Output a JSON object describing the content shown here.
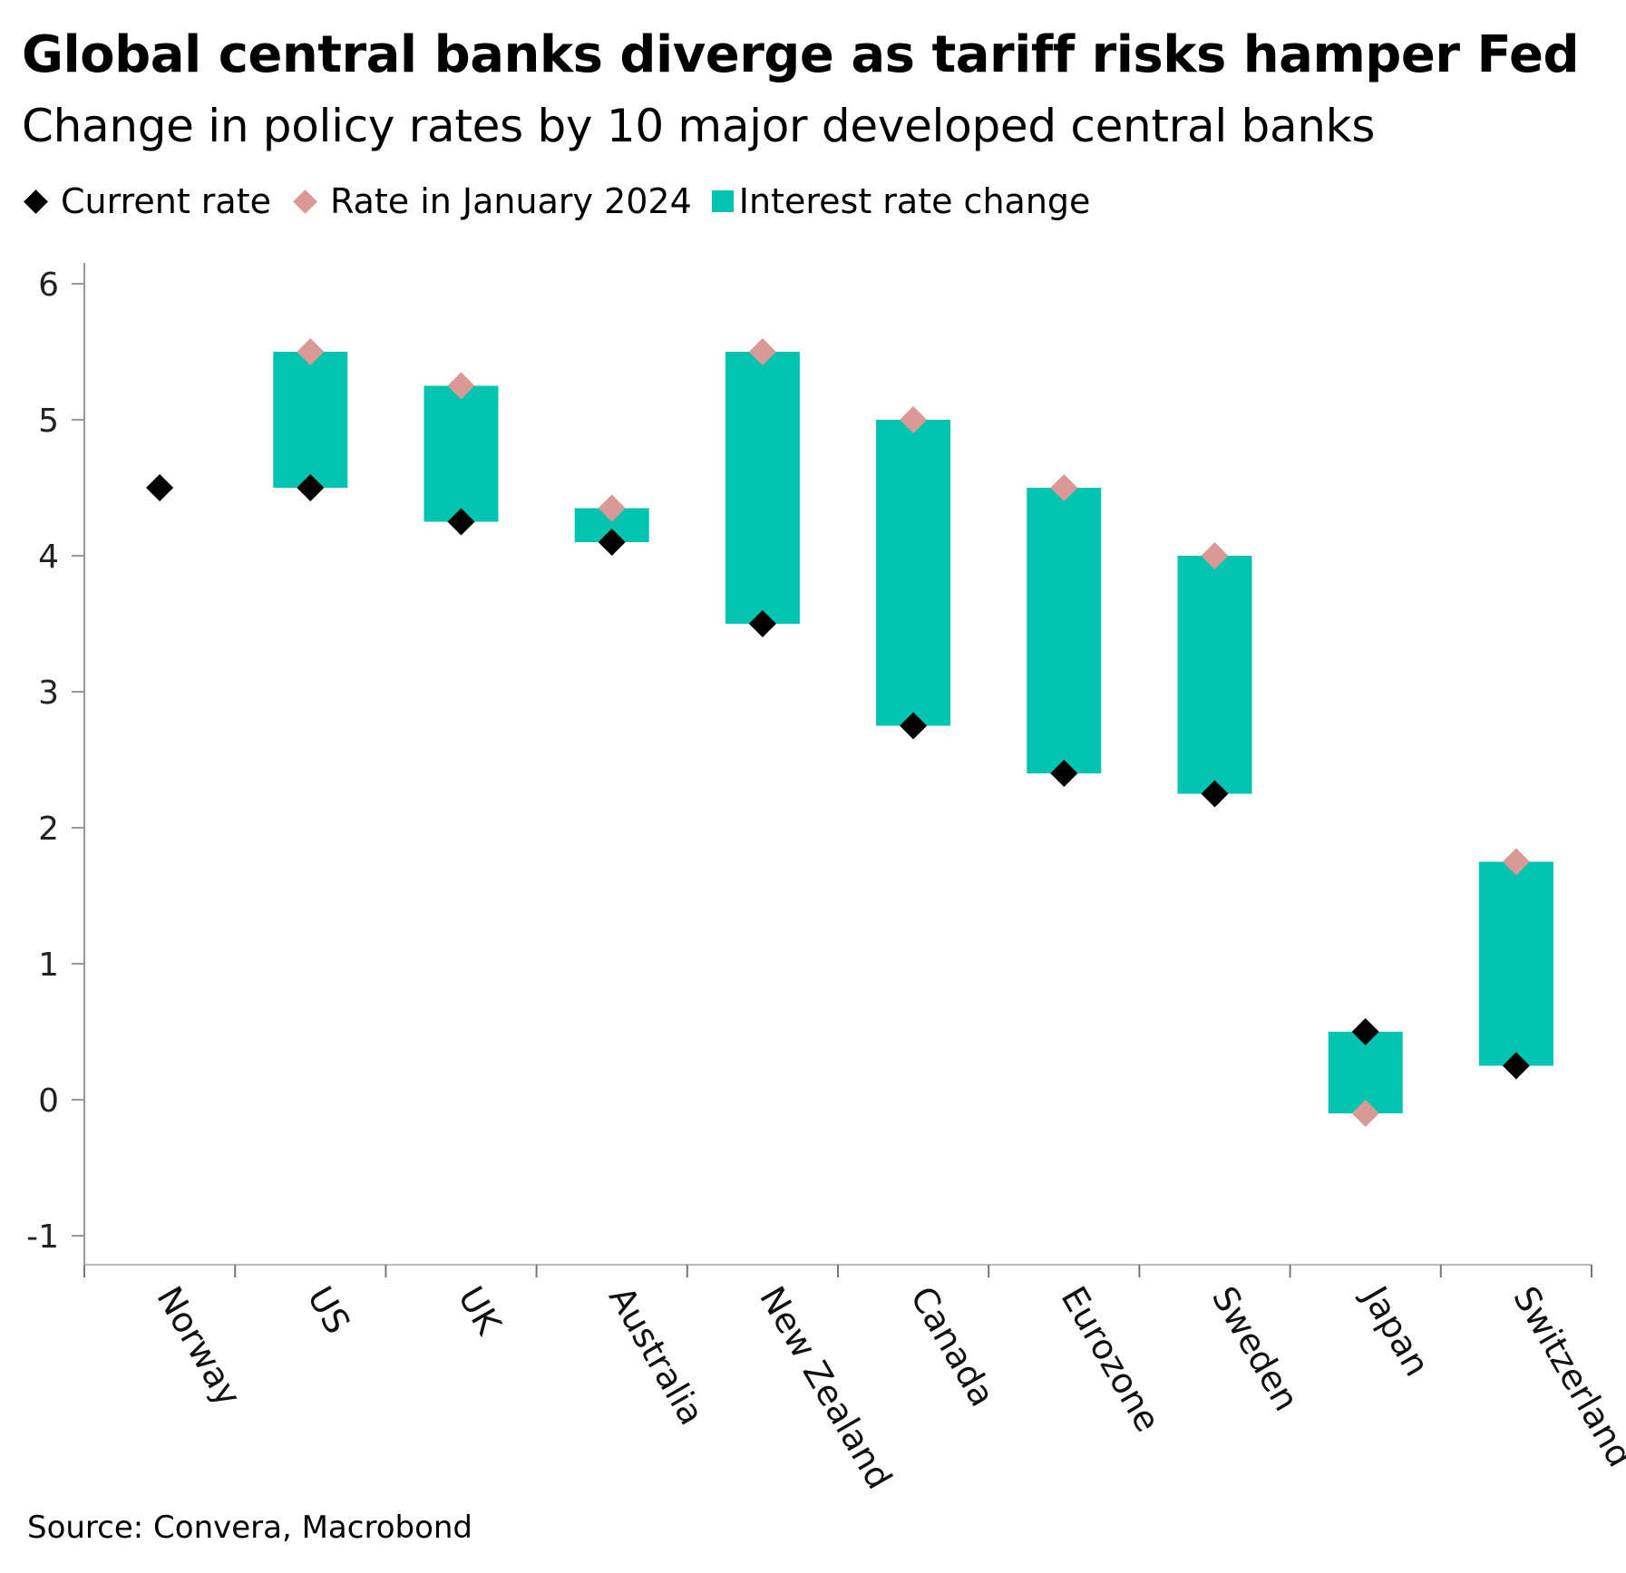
{
  "chart_data": {
    "type": "floating-bar-with-markers",
    "title": "Global central banks diverge as tariff risks hamper Fed",
    "subtitle": "Change in policy rates by 10 major developed central banks",
    "legend": [
      {
        "key": "current",
        "label": "Current rate",
        "color": "#000000",
        "marker": "diamond"
      },
      {
        "key": "jan2024",
        "label": "Rate in January 2024",
        "color": "#d99a96",
        "marker": "diamond"
      },
      {
        "key": "change",
        "label": "Interest rate change",
        "color": "#00c4b0",
        "marker": "square"
      }
    ],
    "legend_position": "top-left",
    "categories": [
      "Norway",
      "US",
      "UK",
      "Australia",
      "New Zealand",
      "Canada",
      "Eurozone",
      "Sweden",
      "Japan",
      "Switzerland"
    ],
    "series": [
      {
        "name": "Current rate",
        "values": [
          4.5,
          4.5,
          4.25,
          4.1,
          3.5,
          2.75,
          2.4,
          2.25,
          0.5,
          0.25
        ]
      },
      {
        "name": "Rate in January 2024",
        "values": [
          4.5,
          5.5,
          5.25,
          4.35,
          5.5,
          5.0,
          4.5,
          4.0,
          -0.1,
          1.75
        ]
      }
    ],
    "yticks": [
      6,
      5,
      4,
      3,
      2,
      1,
      0,
      -1
    ],
    "ylim": [
      -1.2,
      6.1
    ],
    "grid": false,
    "xlabel": "",
    "ylabel": ""
  },
  "source": "Source: Convera, Macrobond"
}
